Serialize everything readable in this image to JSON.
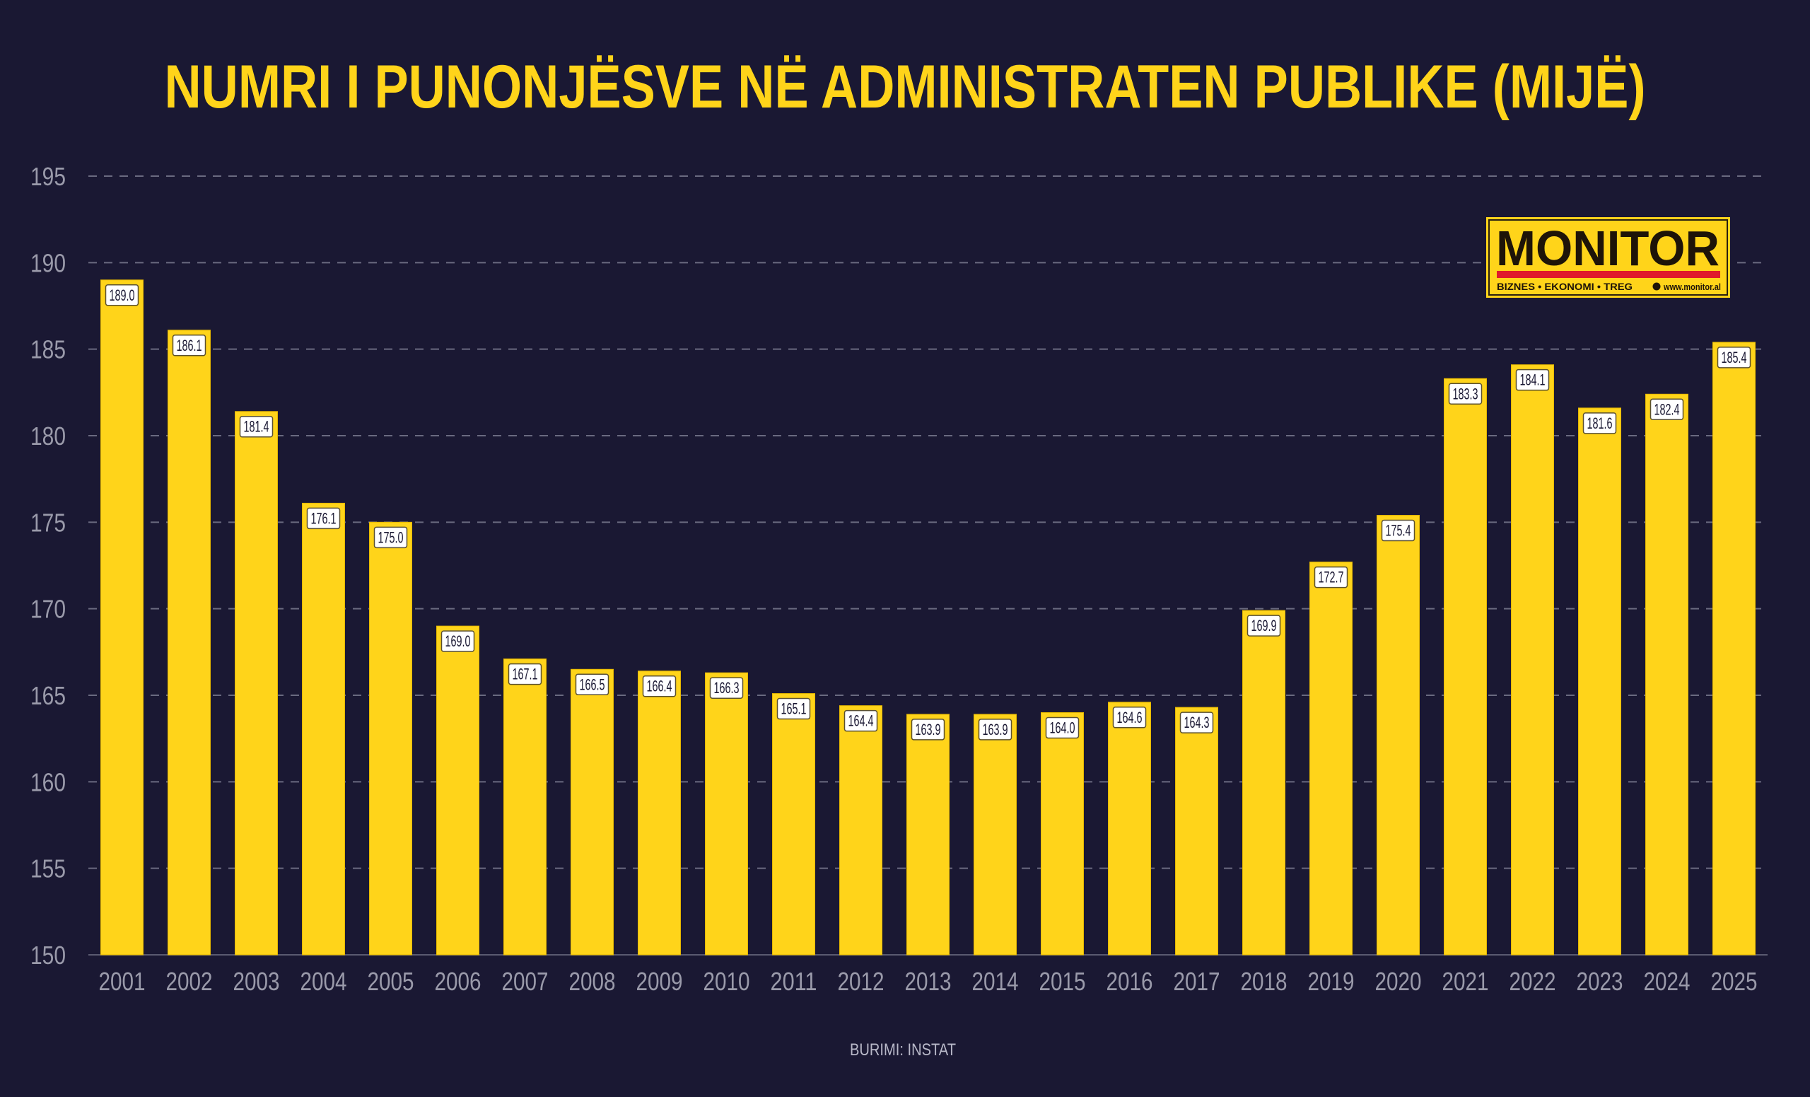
{
  "chart_data": {
    "type": "bar",
    "title": "NUMRI I PUNONJËSVE NË ADMINISTRATEN PUBLIKE (MIJË)",
    "source": "BURIMI: INSTAT",
    "categories": [
      "2001",
      "2002",
      "2003",
      "2004",
      "2005",
      "2006",
      "2007",
      "2008",
      "2009",
      "2010",
      "2011",
      "2012",
      "2013",
      "2014",
      "2015",
      "2016",
      "2017",
      "2018",
      "2019",
      "2020",
      "2021",
      "2022",
      "2023",
      "2024",
      "2025"
    ],
    "values": [
      189.0,
      186.1,
      181.4,
      176.1,
      175.0,
      169.0,
      167.1,
      166.5,
      166.4,
      166.3,
      165.1,
      164.4,
      163.9,
      163.9,
      164.0,
      164.6,
      164.3,
      169.9,
      172.7,
      175.4,
      183.3,
      184.1,
      181.6,
      182.4,
      185.4
    ],
    "data_labels": [
      "189.0",
      "186.1",
      "181.4",
      "176.1",
      "175.0",
      "169.0",
      "167.1",
      "166.5",
      "166.4",
      "166.3",
      "165.1",
      "164.4",
      "163.9",
      "163.9",
      "164.0",
      "164.6",
      "164.3",
      "169.9",
      "172.7",
      "175.4",
      "183.3",
      "184.1",
      "181.6",
      "182.4",
      "185.4"
    ],
    "ylim": [
      150,
      195
    ],
    "yticks": [
      "150",
      "155",
      "160",
      "165",
      "170",
      "175",
      "180",
      "185",
      "190",
      "195"
    ],
    "grid": true,
    "colors": {
      "background": "#1a1833",
      "bar": "#ffd41a",
      "title": "#ffd41a",
      "tick": "#9a9aaa",
      "grid": "#6a6a80"
    }
  },
  "logo": {
    "name": "MONITOR",
    "tagline": "BIZNES  •  EKONOMI  •  TREG",
    "url": "www.monitor.al",
    "colors": {
      "fill": "#ffd41a",
      "stripe": "#e0192b",
      "text": "#1e1408"
    }
  }
}
